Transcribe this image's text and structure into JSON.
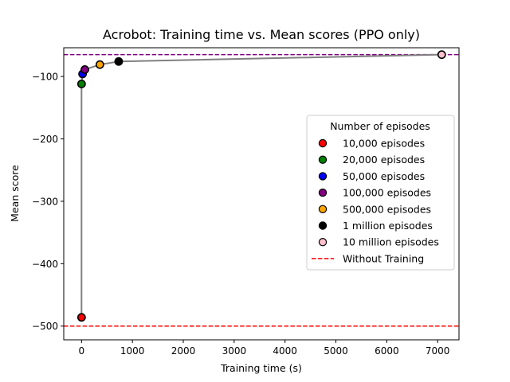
{
  "chart_data": {
    "type": "scatter",
    "title": "Acrobot: Training time vs. Mean scores (PPO only)",
    "xlabel": "Training time (s)",
    "ylabel": "Mean score",
    "xlim": [
      -350,
      7420
    ],
    "ylim": [
      -522,
      -54
    ],
    "xticks": [
      0,
      1000,
      2000,
      3000,
      4000,
      5000,
      6000,
      7000
    ],
    "yticks": [
      -500,
      -400,
      -300,
      -200,
      -100
    ],
    "grid": false,
    "line_color": "#808080",
    "points": [
      {
        "name": "10,000 episodes",
        "x": 0,
        "y": -486,
        "color": "#ff0000"
      },
      {
        "name": "20,000 episodes",
        "x": 0,
        "y": -112,
        "color": "#008000"
      },
      {
        "name": "50,000 episodes",
        "x": 20,
        "y": -96,
        "color": "#0000ff"
      },
      {
        "name": "100,000 episodes",
        "x": 65,
        "y": -89,
        "color": "#800080"
      },
      {
        "name": "500,000 episodes",
        "x": 360,
        "y": -81,
        "color": "#ffa500"
      },
      {
        "name": "1 million episodes",
        "x": 730,
        "y": -76,
        "color": "#000000"
      },
      {
        "name": "10 million episodes",
        "x": 7080,
        "y": -65,
        "color": "#ffc0cb"
      }
    ],
    "reference_lines": [
      {
        "name": "Without Training",
        "y": -500,
        "color": "#ff0000",
        "style": "dashed"
      },
      {
        "name": "",
        "y": -65,
        "color": "#800080",
        "style": "dashed"
      }
    ],
    "legend": {
      "title": "Number of episodes",
      "placement": "center-right"
    }
  }
}
